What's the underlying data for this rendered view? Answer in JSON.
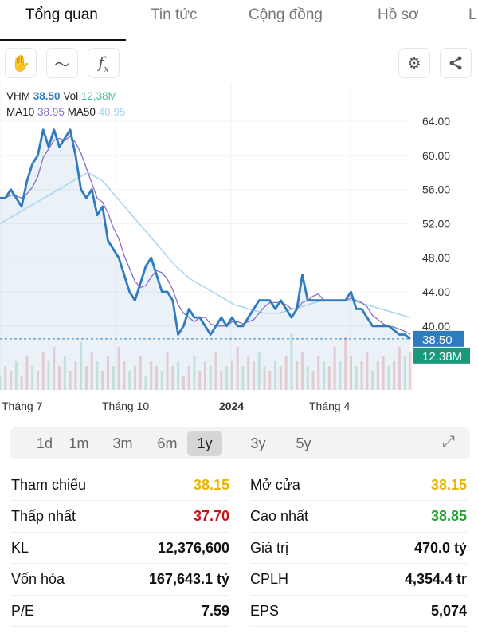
{
  "tabs": [
    "Tổng quan",
    "Tin tức",
    "Cộng đồng",
    "Hồ sơ",
    "L"
  ],
  "toolbar": {
    "left": [
      "hand-icon",
      "line-style-icon",
      "function-icon"
    ],
    "right": [
      "gear-icon",
      "share-icon"
    ]
  },
  "legend": {
    "symbol": "VHM",
    "price": "38.50",
    "vol_label": "Vol",
    "vol": "12,38M",
    "ma10_label": "MA10",
    "ma10": "38.95",
    "ma50_label": "MA50",
    "ma50": "40.95"
  },
  "colors": {
    "price": "#2e7bbf",
    "vol": "#4fbfa3",
    "ma10": "#8a6cc4",
    "ma50": "#a7d3f0",
    "red": "#c0161b",
    "yellow": "#e8b400",
    "green": "#1fa52d",
    "price_tag": "#2e7bbf",
    "vol_tag": "#1a9a7c"
  },
  "chart_data": {
    "type": "line",
    "y_ticks": [
      "64.00",
      "60.00",
      "56.00",
      "52.00",
      "48.00",
      "44.00",
      "40.00"
    ],
    "ylim": [
      36.5,
      65.5
    ],
    "x_labels": [
      "Tháng 7",
      "Tháng 10",
      "2024",
      "Tháng 4"
    ],
    "last_price_tag": "38.50",
    "last_volume_tag": "12.38M",
    "price": [
      55,
      55,
      56,
      55,
      54,
      57,
      59,
      60,
      63,
      61,
      63,
      61,
      62,
      63,
      60,
      56,
      55,
      56,
      53,
      54,
      50,
      49,
      48,
      46,
      44,
      43,
      45,
      47,
      48,
      46,
      44,
      44,
      43,
      39,
      40,
      42,
      41,
      41,
      40,
      39,
      40,
      41,
      40,
      41,
      40,
      40,
      41,
      42,
      43,
      43,
      43,
      42,
      43,
      42,
      41,
      42,
      46,
      43,
      43,
      43,
      43,
      43,
      43,
      43,
      43,
      44,
      42,
      42,
      41,
      40,
      40,
      40,
      40,
      39.5,
      39,
      39,
      38.5
    ],
    "ma50": [
      52,
      53,
      54,
      55,
      56,
      57,
      58,
      57,
      55,
      53,
      51,
      49,
      47,
      45.5,
      44.5,
      43.5,
      42.5,
      42,
      41.5,
      41.5,
      42,
      42.5,
      43,
      43,
      43,
      42.5,
      42,
      41.5,
      41
    ],
    "volume": [
      3,
      5,
      4,
      6,
      3,
      7,
      5,
      4,
      8,
      6,
      9,
      5,
      7,
      4,
      6,
      10,
      5,
      8,
      6,
      4,
      7,
      5,
      9,
      6,
      4,
      5,
      7,
      3,
      6,
      5,
      4,
      8,
      5,
      6,
      3,
      5,
      7,
      4,
      6,
      5,
      8,
      4,
      5,
      6,
      9,
      5,
      7,
      6,
      8,
      5,
      4,
      6,
      5,
      7,
      12,
      6,
      8,
      5,
      4,
      7,
      6,
      5,
      9,
      6,
      11,
      7,
      5,
      6,
      8,
      4,
      6,
      7,
      5,
      6,
      9,
      7,
      8
    ]
  },
  "periods": [
    "1d",
    "1m",
    "3m",
    "6m",
    "1y",
    "3y",
    "5y"
  ],
  "active_period": "1y",
  "stats": [
    {
      "l": "Tham chiếu",
      "v": "38.15",
      "c": "yellow",
      "l2": "Mở cửa",
      "v2": "38.15",
      "c2": "yellow"
    },
    {
      "l": "Thấp nhất",
      "v": "37.70",
      "c": "red",
      "l2": "Cao nhất",
      "v2": "38.85",
      "c2": "green"
    },
    {
      "l": "KL",
      "v": "12,376,600",
      "c": "",
      "l2": "Giá trị",
      "v2": "470.0 tỷ",
      "c2": ""
    },
    {
      "l": "Vốn hóa",
      "v": "167,643.1 tỷ",
      "c": "",
      "l2": "CPLH",
      "v2": "4,354.4 tr",
      "c2": ""
    },
    {
      "l": "P/E",
      "v": "7.59",
      "c": "",
      "l2": "EPS",
      "v2": "5,074",
      "c2": ""
    }
  ]
}
